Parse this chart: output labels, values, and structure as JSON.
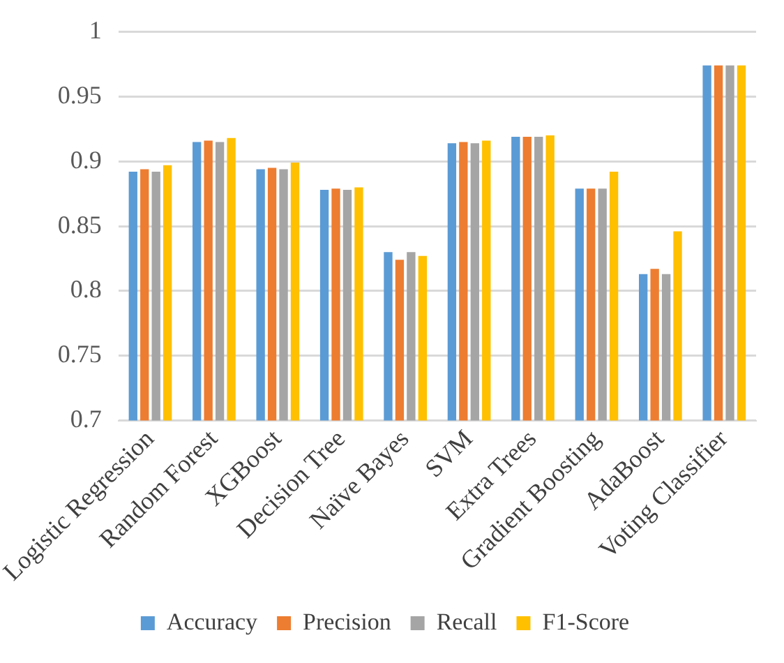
{
  "chart_data": {
    "type": "bar",
    "categories": [
      "Logistic Regression",
      "Random Forest",
      "XGBoost",
      "Decision Tree",
      "Naïve Bayes",
      "SVM",
      "Extra Trees",
      "Gradient Boosting",
      "AdaBoost",
      "Voting Classifier"
    ],
    "series": [
      {
        "name": "Accuracy",
        "color": "#5b9bd5",
        "values": [
          0.892,
          0.915,
          0.894,
          0.878,
          0.83,
          0.914,
          0.919,
          0.879,
          0.813,
          0.974
        ]
      },
      {
        "name": "Precision",
        "color": "#ed7d31",
        "values": [
          0.894,
          0.916,
          0.895,
          0.879,
          0.824,
          0.915,
          0.919,
          0.879,
          0.817,
          0.974
        ]
      },
      {
        "name": "Recall",
        "color": "#a5a5a5",
        "values": [
          0.892,
          0.915,
          0.894,
          0.878,
          0.83,
          0.914,
          0.919,
          0.879,
          0.813,
          0.974
        ]
      },
      {
        "name": "F1-Score",
        "color": "#ffc000",
        "values": [
          0.897,
          0.918,
          0.899,
          0.88,
          0.827,
          0.916,
          0.92,
          0.892,
          0.846,
          0.974
        ]
      }
    ],
    "ylim": [
      0.7,
      1
    ],
    "yticks": [
      0.7,
      0.75,
      0.8,
      0.85,
      0.9,
      0.95,
      1
    ],
    "grid": "y",
    "legend": "bottom"
  }
}
